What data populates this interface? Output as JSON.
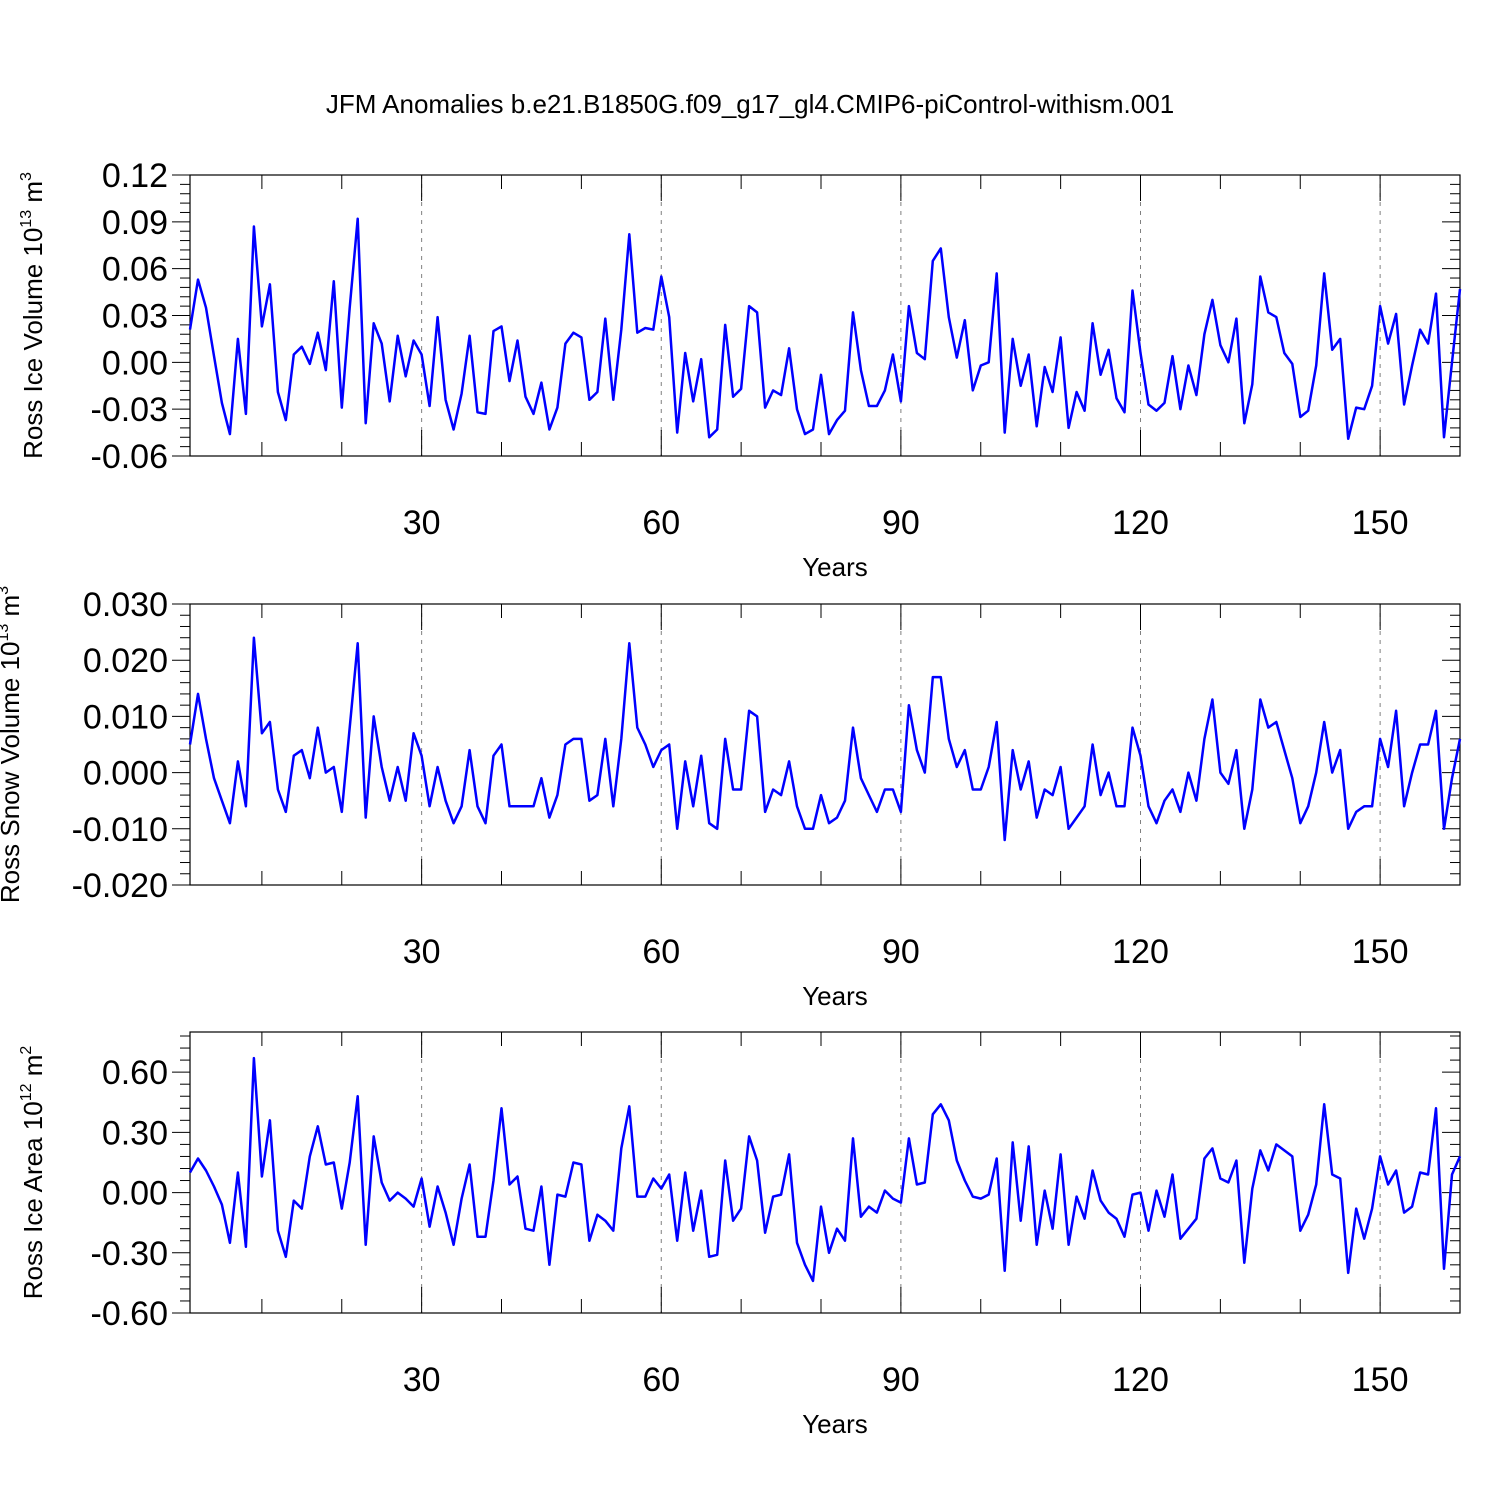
{
  "figure": {
    "title": "JFM Anomalies b.e21.B1850G.f09_g17_gl4.CMIP6-piControl-withism.001",
    "line_color": "#0000ff",
    "axis_color": "#000000",
    "grid_color": "#808080"
  },
  "chart_data": [
    {
      "type": "line",
      "ylabel": "Ross Ice Volume 10",
      "ylabel_sup": "13",
      "ylabel_tail": " m",
      "ylabel_sup2": "3",
      "xlabel": "Years",
      "xlim": [
        1,
        160
      ],
      "ylim": [
        -0.06,
        0.12
      ],
      "xticks": [
        30,
        60,
        90,
        120,
        150
      ],
      "xtick_labels": [
        "30",
        "60",
        "90",
        "120",
        "150"
      ],
      "yticks": [
        -0.06,
        -0.03,
        0.0,
        0.03,
        0.06,
        0.09,
        0.12
      ],
      "ytick_labels": [
        "-0.06",
        "-0.03",
        "0.00",
        "0.03",
        "0.06",
        "0.09",
        "0.12"
      ],
      "grid": "dashed vertical at x ticks",
      "series": [
        {
          "values": [
            0.021,
            0.053,
            0.035,
            0.004,
            -0.026,
            -0.046,
            0.015,
            -0.033,
            0.087,
            0.023,
            0.05,
            -0.019,
            -0.037,
            0.005,
            0.01,
            -0.001,
            0.019,
            -0.005,
            0.052,
            -0.029,
            0.035,
            0.092,
            -0.039,
            0.025,
            0.012,
            -0.025,
            0.017,
            -0.009,
            0.014,
            0.005,
            -0.028,
            0.029,
            -0.024,
            -0.043,
            -0.02,
            0.017,
            -0.032,
            -0.033,
            0.02,
            0.023,
            -0.012,
            0.014,
            -0.022,
            -0.033,
            -0.013,
            -0.043,
            -0.029,
            0.012,
            0.019,
            0.016,
            -0.024,
            -0.019,
            0.028,
            -0.024,
            0.021,
            0.082,
            0.019,
            0.022,
            0.021,
            0.055,
            0.029,
            -0.045,
            0.006,
            -0.025,
            0.002,
            -0.048,
            -0.043,
            0.024,
            -0.022,
            -0.017,
            0.036,
            0.032,
            -0.029,
            -0.018,
            -0.021,
            0.009,
            -0.03,
            -0.046,
            -0.043,
            -0.008,
            -0.046,
            -0.037,
            -0.031,
            0.032,
            -0.005,
            -0.028,
            -0.028,
            -0.018,
            0.005,
            -0.025,
            0.036,
            0.006,
            0.002,
            0.065,
            0.073,
            0.029,
            0.003,
            0.027,
            -0.018,
            -0.002,
            0.0,
            0.057,
            -0.045,
            0.015,
            -0.015,
            0.005,
            -0.041,
            -0.003,
            -0.019,
            0.016,
            -0.042,
            -0.019,
            -0.031,
            0.025,
            -0.008,
            0.008,
            -0.023,
            -0.032,
            0.046,
            0.006,
            -0.027,
            -0.031,
            -0.026,
            0.004,
            -0.03,
            -0.002,
            -0.021,
            0.018,
            0.04,
            0.011,
            0.0,
            0.028,
            -0.039,
            -0.014,
            0.055,
            0.032,
            0.029,
            0.006,
            -0.001,
            -0.035,
            -0.031,
            -0.002,
            0.057,
            0.008,
            0.015,
            -0.049,
            -0.029,
            -0.03,
            -0.015,
            0.036,
            0.012,
            0.031,
            -0.027,
            -0.002,
            0.021,
            0.012,
            0.044,
            -0.048,
            0.0,
            0.047
          ]
        }
      ]
    },
    {
      "type": "line",
      "ylabel": "Ross Snow Volume 10",
      "ylabel_sup": "13",
      "ylabel_tail": " m",
      "ylabel_sup2": "3",
      "xlabel": "Years",
      "xlim": [
        1,
        160
      ],
      "ylim": [
        -0.02,
        0.03
      ],
      "xticks": [
        30,
        60,
        90,
        120,
        150
      ],
      "xtick_labels": [
        "30",
        "60",
        "90",
        "120",
        "150"
      ],
      "yticks": [
        -0.02,
        -0.01,
        0.0,
        0.01,
        0.02,
        0.03
      ],
      "ytick_labels": [
        "-0.020",
        "-0.010",
        "0.000",
        "0.010",
        "0.020",
        "0.030"
      ],
      "grid": "dashed vertical at x ticks",
      "series": [
        {
          "values": [
            0.005,
            0.014,
            0.006,
            -0.001,
            -0.005,
            -0.009,
            0.002,
            -0.006,
            0.024,
            0.007,
            0.009,
            -0.003,
            -0.007,
            0.003,
            0.004,
            -0.001,
            0.008,
            0.0,
            0.001,
            -0.007,
            0.008,
            0.023,
            -0.008,
            0.01,
            0.001,
            -0.005,
            0.001,
            -0.005,
            0.007,
            0.003,
            -0.006,
            0.001,
            -0.005,
            -0.009,
            -0.006,
            0.004,
            -0.006,
            -0.009,
            0.003,
            0.005,
            -0.006,
            -0.006,
            -0.006,
            -0.006,
            -0.001,
            -0.008,
            -0.004,
            0.005,
            0.006,
            0.006,
            -0.005,
            -0.004,
            0.006,
            -0.006,
            0.006,
            0.023,
            0.008,
            0.005,
            0.001,
            0.004,
            0.005,
            -0.01,
            0.002,
            -0.006,
            0.003,
            -0.009,
            -0.01,
            0.006,
            -0.003,
            -0.003,
            0.011,
            0.01,
            -0.007,
            -0.003,
            -0.004,
            0.002,
            -0.006,
            -0.01,
            -0.01,
            -0.004,
            -0.009,
            -0.008,
            -0.005,
            0.008,
            -0.001,
            -0.004,
            -0.007,
            -0.003,
            -0.003,
            -0.007,
            0.012,
            0.004,
            0.0,
            0.017,
            0.017,
            0.006,
            0.001,
            0.004,
            -0.003,
            -0.003,
            0.001,
            0.009,
            -0.012,
            0.004,
            -0.003,
            0.002,
            -0.008,
            -0.003,
            -0.004,
            0.001,
            -0.01,
            -0.008,
            -0.006,
            0.005,
            -0.004,
            0.0,
            -0.006,
            -0.006,
            0.008,
            0.003,
            -0.006,
            -0.009,
            -0.005,
            -0.003,
            -0.007,
            0.0,
            -0.005,
            0.006,
            0.013,
            0.0,
            -0.002,
            0.004,
            -0.01,
            -0.003,
            0.013,
            0.008,
            0.009,
            0.004,
            -0.001,
            -0.009,
            -0.006,
            0.0,
            0.009,
            0.0,
            0.004,
            -0.01,
            -0.007,
            -0.006,
            -0.006,
            0.006,
            0.001,
            0.011,
            -0.006,
            0.0,
            0.005,
            0.005,
            0.011,
            -0.01,
            -0.001,
            0.006
          ]
        }
      ]
    },
    {
      "type": "line",
      "ylabel": "Ross Ice Area 10",
      "ylabel_sup": "12",
      "ylabel_tail": " m",
      "ylabel_sup2": "2",
      "xlabel": "Years",
      "xlim": [
        1,
        160
      ],
      "ylim": [
        -0.6,
        0.8
      ],
      "xticks": [
        30,
        60,
        90,
        120,
        150
      ],
      "xtick_labels": [
        "30",
        "60",
        "90",
        "120",
        "150"
      ],
      "yticks": [
        -0.6,
        -0.3,
        0.0,
        0.3,
        0.6
      ],
      "ytick_labels": [
        "-0.60",
        "-0.30",
        "0.00",
        "0.30",
        "0.60"
      ],
      "grid": "dashed vertical at x ticks",
      "series": [
        {
          "values": [
            0.1,
            0.17,
            0.11,
            0.03,
            -0.06,
            -0.25,
            0.1,
            -0.27,
            0.67,
            0.08,
            0.36,
            -0.19,
            -0.32,
            -0.04,
            -0.08,
            0.18,
            0.33,
            0.14,
            0.15,
            -0.08,
            0.15,
            0.48,
            -0.26,
            0.28,
            0.05,
            -0.04,
            0.0,
            -0.03,
            -0.07,
            0.07,
            -0.17,
            0.03,
            -0.1,
            -0.26,
            -0.03,
            0.14,
            -0.22,
            -0.22,
            0.06,
            0.42,
            0.04,
            0.08,
            -0.18,
            -0.19,
            0.03,
            -0.36,
            -0.01,
            -0.02,
            0.15,
            0.14,
            -0.24,
            -0.11,
            -0.14,
            -0.19,
            0.22,
            0.43,
            -0.02,
            -0.02,
            0.07,
            0.02,
            0.09,
            -0.24,
            0.1,
            -0.19,
            0.01,
            -0.32,
            -0.31,
            0.16,
            -0.14,
            -0.08,
            0.28,
            0.16,
            -0.2,
            -0.02,
            -0.01,
            0.19,
            -0.25,
            -0.36,
            -0.44,
            -0.07,
            -0.3,
            -0.18,
            -0.24,
            0.27,
            -0.12,
            -0.07,
            -0.1,
            0.01,
            -0.03,
            -0.05,
            0.27,
            0.04,
            0.05,
            0.39,
            0.44,
            0.36,
            0.16,
            0.06,
            -0.02,
            -0.03,
            -0.01,
            0.17,
            -0.39,
            0.25,
            -0.14,
            0.23,
            -0.26,
            0.01,
            -0.18,
            0.19,
            -0.26,
            -0.02,
            -0.13,
            0.11,
            -0.04,
            -0.1,
            -0.13,
            -0.22,
            -0.01,
            0.0,
            -0.19,
            0.01,
            -0.12,
            0.09,
            -0.23,
            -0.18,
            -0.13,
            0.17,
            0.22,
            0.07,
            0.05,
            0.16,
            -0.35,
            0.02,
            0.21,
            0.11,
            0.24,
            0.21,
            0.18,
            -0.19,
            -0.11,
            0.04,
            0.44,
            0.09,
            0.07,
            -0.4,
            -0.08,
            -0.23,
            -0.08,
            0.18,
            0.04,
            0.11,
            -0.1,
            -0.07,
            0.1,
            0.09,
            0.42,
            -0.38,
            0.09,
            0.18
          ]
        }
      ]
    }
  ]
}
